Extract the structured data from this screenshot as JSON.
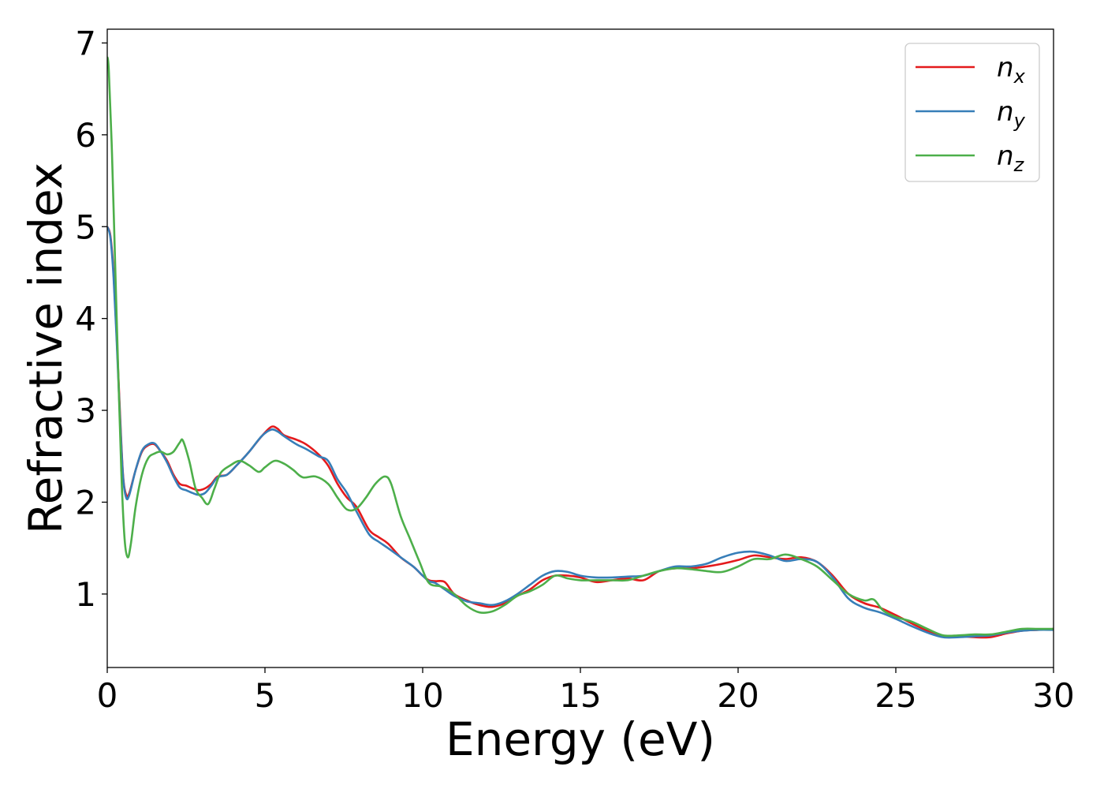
{
  "chart_data": {
    "type": "line",
    "title": "",
    "xlabel": "Energy (eV)",
    "ylabel": "Refractive index",
    "xlim": [
      0,
      30
    ],
    "ylim": [
      0.2,
      7.15
    ],
    "xticks": [
      0,
      5,
      10,
      15,
      20,
      25,
      30
    ],
    "yticks": [
      1,
      2,
      3,
      4,
      5,
      6,
      7
    ],
    "grid": false,
    "legend_position": "top-right",
    "series": [
      {
        "name": "n",
        "subscript": "x",
        "color": "#e41a1c",
        "points": [
          [
            0,
            5.0
          ],
          [
            0.1,
            4.9
          ],
          [
            0.2,
            4.5
          ],
          [
            0.3,
            3.8
          ],
          [
            0.4,
            3.0
          ],
          [
            0.5,
            2.3
          ],
          [
            0.6,
            2.08
          ],
          [
            0.7,
            2.1
          ],
          [
            0.9,
            2.35
          ],
          [
            1.1,
            2.55
          ],
          [
            1.3,
            2.62
          ],
          [
            1.5,
            2.63
          ],
          [
            1.7,
            2.55
          ],
          [
            1.9,
            2.45
          ],
          [
            2.1,
            2.3
          ],
          [
            2.3,
            2.2
          ],
          [
            2.5,
            2.18
          ],
          [
            2.7,
            2.15
          ],
          [
            2.9,
            2.13
          ],
          [
            3.1,
            2.15
          ],
          [
            3.3,
            2.2
          ],
          [
            3.5,
            2.28
          ],
          [
            3.8,
            2.3
          ],
          [
            4.1,
            2.4
          ],
          [
            4.5,
            2.55
          ],
          [
            4.9,
            2.72
          ],
          [
            5.2,
            2.82
          ],
          [
            5.4,
            2.8
          ],
          [
            5.6,
            2.73
          ],
          [
            6.0,
            2.68
          ],
          [
            6.3,
            2.63
          ],
          [
            6.7,
            2.52
          ],
          [
            7.0,
            2.4
          ],
          [
            7.3,
            2.2
          ],
          [
            7.6,
            2.05
          ],
          [
            7.9,
            1.95
          ],
          [
            8.3,
            1.7
          ],
          [
            8.6,
            1.62
          ],
          [
            8.9,
            1.55
          ],
          [
            9.3,
            1.4
          ],
          [
            9.7,
            1.3
          ],
          [
            10.0,
            1.2
          ],
          [
            10.2,
            1.15
          ],
          [
            10.4,
            1.14
          ],
          [
            10.7,
            1.13
          ],
          [
            11.0,
            1.0
          ],
          [
            11.4,
            0.93
          ],
          [
            11.8,
            0.88
          ],
          [
            12.2,
            0.86
          ],
          [
            12.6,
            0.9
          ],
          [
            13.0,
            0.98
          ],
          [
            13.4,
            1.05
          ],
          [
            13.8,
            1.15
          ],
          [
            14.2,
            1.2
          ],
          [
            14.6,
            1.2
          ],
          [
            15.0,
            1.18
          ],
          [
            15.5,
            1.13
          ],
          [
            16.0,
            1.15
          ],
          [
            16.5,
            1.17
          ],
          [
            17.0,
            1.15
          ],
          [
            17.5,
            1.25
          ],
          [
            18.0,
            1.28
          ],
          [
            18.5,
            1.28
          ],
          [
            19.0,
            1.3
          ],
          [
            19.5,
            1.33
          ],
          [
            20.0,
            1.37
          ],
          [
            20.5,
            1.42
          ],
          [
            21.0,
            1.4
          ],
          [
            21.5,
            1.38
          ],
          [
            22.0,
            1.4
          ],
          [
            22.5,
            1.35
          ],
          [
            23.0,
            1.2
          ],
          [
            23.5,
            1.0
          ],
          [
            24.0,
            0.9
          ],
          [
            24.5,
            0.85
          ],
          [
            25.0,
            0.77
          ],
          [
            25.5,
            0.68
          ],
          [
            26.0,
            0.6
          ],
          [
            26.5,
            0.54
          ],
          [
            27.0,
            0.54
          ],
          [
            27.5,
            0.53
          ],
          [
            28.0,
            0.53
          ],
          [
            28.5,
            0.57
          ],
          [
            29.0,
            0.6
          ],
          [
            29.5,
            0.61
          ],
          [
            30.0,
            0.62
          ]
        ]
      },
      {
        "name": "n",
        "subscript": "y",
        "color": "#377eb8",
        "points": [
          [
            0,
            5.0
          ],
          [
            0.1,
            4.88
          ],
          [
            0.2,
            4.45
          ],
          [
            0.3,
            3.75
          ],
          [
            0.4,
            2.95
          ],
          [
            0.5,
            2.28
          ],
          [
            0.6,
            2.05
          ],
          [
            0.7,
            2.08
          ],
          [
            0.9,
            2.35
          ],
          [
            1.1,
            2.56
          ],
          [
            1.3,
            2.63
          ],
          [
            1.5,
            2.64
          ],
          [
            1.7,
            2.55
          ],
          [
            1.9,
            2.43
          ],
          [
            2.1,
            2.28
          ],
          [
            2.3,
            2.16
          ],
          [
            2.5,
            2.13
          ],
          [
            2.7,
            2.1
          ],
          [
            2.9,
            2.08
          ],
          [
            3.1,
            2.1
          ],
          [
            3.3,
            2.18
          ],
          [
            3.5,
            2.27
          ],
          [
            3.8,
            2.3
          ],
          [
            4.1,
            2.4
          ],
          [
            4.5,
            2.55
          ],
          [
            4.9,
            2.72
          ],
          [
            5.2,
            2.79
          ],
          [
            5.4,
            2.77
          ],
          [
            5.6,
            2.72
          ],
          [
            6.0,
            2.63
          ],
          [
            6.3,
            2.58
          ],
          [
            6.7,
            2.5
          ],
          [
            7.0,
            2.45
          ],
          [
            7.3,
            2.25
          ],
          [
            7.6,
            2.1
          ],
          [
            7.9,
            1.9
          ],
          [
            8.3,
            1.65
          ],
          [
            8.6,
            1.57
          ],
          [
            8.9,
            1.5
          ],
          [
            9.3,
            1.4
          ],
          [
            9.7,
            1.3
          ],
          [
            10.0,
            1.2
          ],
          [
            10.2,
            1.14
          ],
          [
            10.4,
            1.12
          ],
          [
            10.7,
            1.05
          ],
          [
            11.0,
            0.98
          ],
          [
            11.4,
            0.92
          ],
          [
            11.8,
            0.9
          ],
          [
            12.2,
            0.88
          ],
          [
            12.6,
            0.92
          ],
          [
            13.0,
            1.0
          ],
          [
            13.4,
            1.1
          ],
          [
            13.8,
            1.2
          ],
          [
            14.2,
            1.25
          ],
          [
            14.6,
            1.24
          ],
          [
            15.0,
            1.2
          ],
          [
            15.5,
            1.18
          ],
          [
            16.0,
            1.18
          ],
          [
            16.5,
            1.19
          ],
          [
            17.0,
            1.2
          ],
          [
            17.5,
            1.25
          ],
          [
            18.0,
            1.3
          ],
          [
            18.5,
            1.3
          ],
          [
            19.0,
            1.33
          ],
          [
            19.5,
            1.4
          ],
          [
            20.0,
            1.45
          ],
          [
            20.5,
            1.46
          ],
          [
            21.0,
            1.42
          ],
          [
            21.5,
            1.36
          ],
          [
            22.0,
            1.38
          ],
          [
            22.5,
            1.35
          ],
          [
            23.0,
            1.18
          ],
          [
            23.5,
            0.95
          ],
          [
            24.0,
            0.85
          ],
          [
            24.5,
            0.8
          ],
          [
            25.0,
            0.73
          ],
          [
            25.5,
            0.65
          ],
          [
            26.0,
            0.58
          ],
          [
            26.5,
            0.53
          ],
          [
            27.0,
            0.53
          ],
          [
            27.5,
            0.54
          ],
          [
            28.0,
            0.55
          ],
          [
            28.5,
            0.58
          ],
          [
            29.0,
            0.6
          ],
          [
            29.5,
            0.61
          ],
          [
            30.0,
            0.61
          ]
        ]
      },
      {
        "name": "n",
        "subscript": "z",
        "color": "#4daf4a",
        "points": [
          [
            0,
            6.85
          ],
          [
            0.05,
            6.7
          ],
          [
            0.15,
            5.8
          ],
          [
            0.25,
            4.6
          ],
          [
            0.35,
            3.4
          ],
          [
            0.45,
            2.3
          ],
          [
            0.55,
            1.6
          ],
          [
            0.65,
            1.4
          ],
          [
            0.75,
            1.55
          ],
          [
            0.9,
            1.95
          ],
          [
            1.1,
            2.3
          ],
          [
            1.3,
            2.48
          ],
          [
            1.5,
            2.53
          ],
          [
            1.7,
            2.55
          ],
          [
            1.9,
            2.52
          ],
          [
            2.1,
            2.55
          ],
          [
            2.3,
            2.65
          ],
          [
            2.4,
            2.67
          ],
          [
            2.6,
            2.45
          ],
          [
            2.8,
            2.15
          ],
          [
            3.0,
            2.05
          ],
          [
            3.2,
            1.98
          ],
          [
            3.4,
            2.15
          ],
          [
            3.6,
            2.32
          ],
          [
            3.9,
            2.4
          ],
          [
            4.2,
            2.45
          ],
          [
            4.5,
            2.4
          ],
          [
            4.8,
            2.33
          ],
          [
            5.0,
            2.38
          ],
          [
            5.3,
            2.45
          ],
          [
            5.6,
            2.42
          ],
          [
            5.9,
            2.35
          ],
          [
            6.2,
            2.27
          ],
          [
            6.6,
            2.28
          ],
          [
            7.0,
            2.2
          ],
          [
            7.3,
            2.05
          ],
          [
            7.6,
            1.92
          ],
          [
            7.9,
            1.93
          ],
          [
            8.2,
            2.05
          ],
          [
            8.5,
            2.2
          ],
          [
            8.8,
            2.28
          ],
          [
            9.0,
            2.2
          ],
          [
            9.3,
            1.85
          ],
          [
            9.6,
            1.6
          ],
          [
            9.9,
            1.35
          ],
          [
            10.2,
            1.12
          ],
          [
            10.6,
            1.08
          ],
          [
            11.0,
            1.0
          ],
          [
            11.4,
            0.87
          ],
          [
            11.8,
            0.8
          ],
          [
            12.2,
            0.81
          ],
          [
            12.6,
            0.88
          ],
          [
            13.0,
            0.98
          ],
          [
            13.4,
            1.03
          ],
          [
            13.8,
            1.1
          ],
          [
            14.2,
            1.2
          ],
          [
            14.6,
            1.17
          ],
          [
            15.0,
            1.15
          ],
          [
            15.5,
            1.15
          ],
          [
            16.0,
            1.15
          ],
          [
            16.5,
            1.15
          ],
          [
            17.0,
            1.2
          ],
          [
            17.5,
            1.25
          ],
          [
            18.0,
            1.28
          ],
          [
            18.5,
            1.27
          ],
          [
            19.0,
            1.25
          ],
          [
            19.5,
            1.24
          ],
          [
            20.0,
            1.3
          ],
          [
            20.5,
            1.38
          ],
          [
            21.0,
            1.38
          ],
          [
            21.5,
            1.43
          ],
          [
            22.0,
            1.38
          ],
          [
            22.5,
            1.3
          ],
          [
            23.0,
            1.15
          ],
          [
            23.5,
            1.0
          ],
          [
            24.0,
            0.93
          ],
          [
            24.3,
            0.94
          ],
          [
            24.6,
            0.82
          ],
          [
            25.0,
            0.75
          ],
          [
            25.5,
            0.7
          ],
          [
            26.0,
            0.62
          ],
          [
            26.5,
            0.55
          ],
          [
            27.0,
            0.55
          ],
          [
            27.5,
            0.56
          ],
          [
            28.0,
            0.56
          ],
          [
            28.5,
            0.59
          ],
          [
            29.0,
            0.62
          ],
          [
            29.5,
            0.62
          ],
          [
            30.0,
            0.62
          ]
        ]
      }
    ]
  }
}
